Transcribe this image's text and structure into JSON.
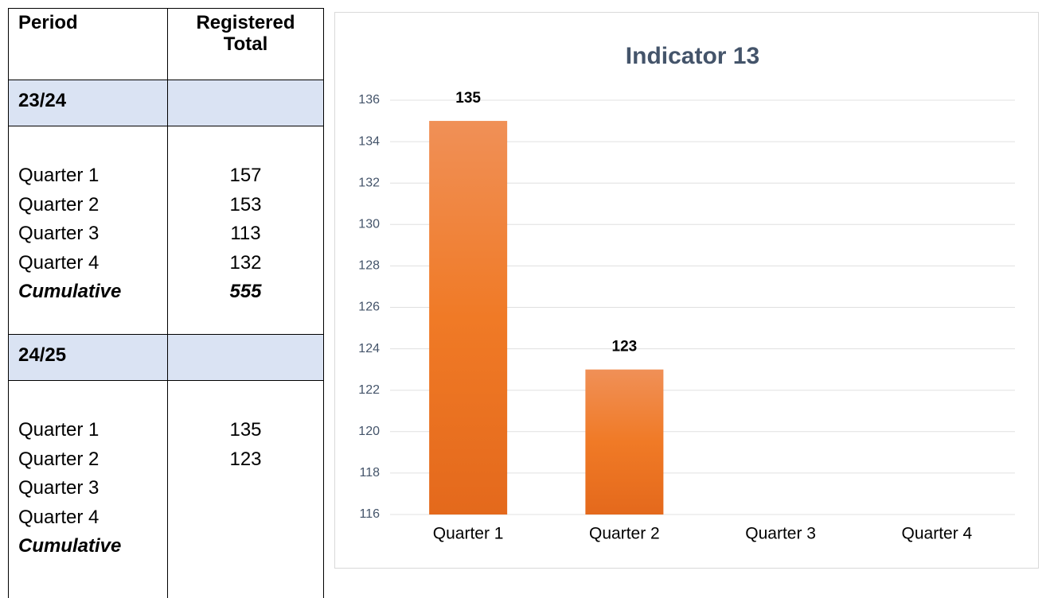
{
  "table": {
    "header": [
      "Period",
      "Registered Total"
    ],
    "sections": [
      {
        "period": "23/24",
        "rows": [
          {
            "label": "Quarter 1",
            "value": 157
          },
          {
            "label": "Quarter 2",
            "value": 153
          },
          {
            "label": "Quarter 3",
            "value": 113
          },
          {
            "label": "Quarter 4",
            "value": 132
          },
          {
            "label": "Cumulative",
            "value": 555
          }
        ]
      },
      {
        "period": "24/25",
        "rows": [
          {
            "label": "Quarter 1",
            "value": 135
          },
          {
            "label": "Quarter 2",
            "value": 123
          },
          {
            "label": "Quarter 3"
          },
          {
            "label": "Quarter 4"
          },
          {
            "label": "Cumulative"
          }
        ]
      }
    ]
  },
  "chart_data": {
    "type": "bar",
    "title": "Indicator 13",
    "categories": [
      "Quarter 1",
      "Quarter 2",
      "Quarter 3",
      "Quarter 4"
    ],
    "values": [
      135,
      123,
      null,
      null
    ],
    "color": "#ed7d31",
    "ylim": [
      116,
      136
    ],
    "yticks": [
      116,
      118,
      120,
      122,
      124,
      126,
      128,
      130,
      132,
      134,
      136
    ],
    "grid": true
  }
}
